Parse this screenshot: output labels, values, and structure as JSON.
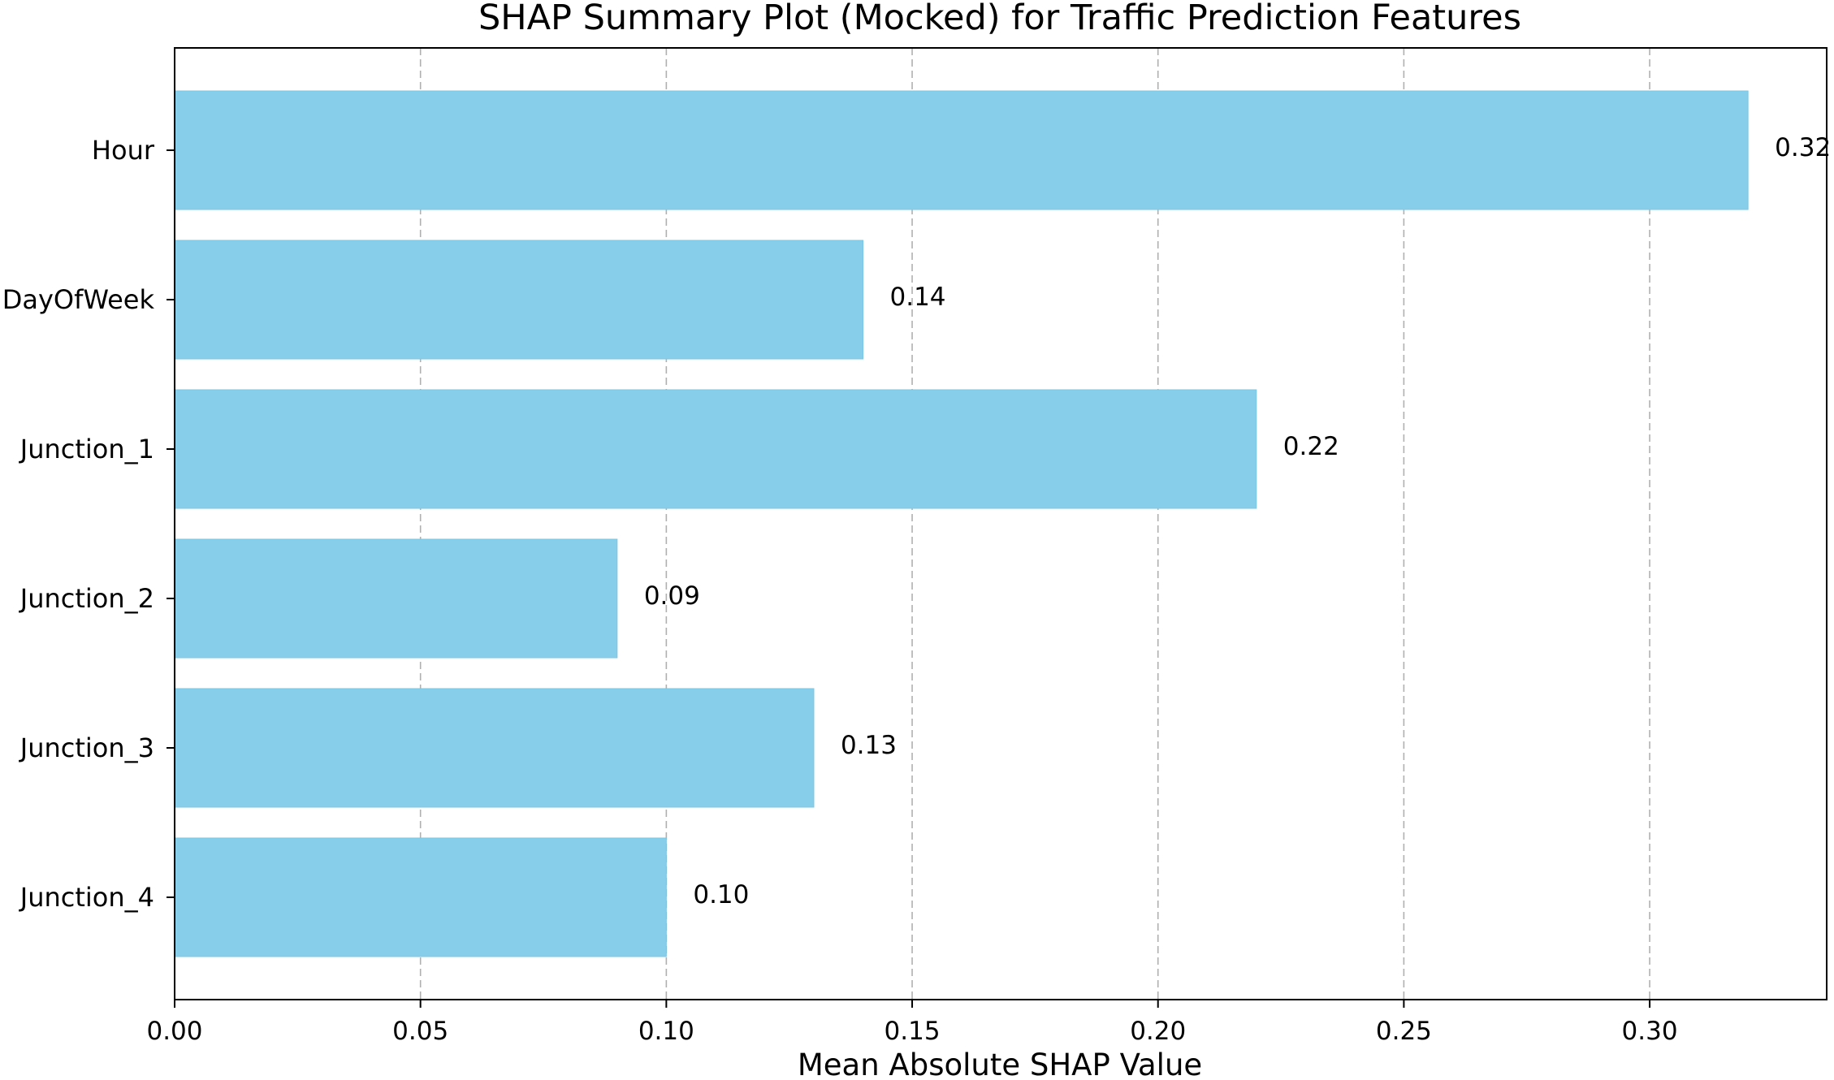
{
  "chart_data": {
    "type": "bar",
    "orientation": "horizontal",
    "title": "SHAP Summary Plot (Mocked) for Traffic Prediction Features",
    "xlabel": "Mean Absolute SHAP Value",
    "ylabel": "",
    "categories": [
      "Hour",
      "DayOfWeek",
      "Junction_1",
      "Junction_2",
      "Junction_3",
      "Junction_4"
    ],
    "values": [
      0.32,
      0.14,
      0.22,
      0.09,
      0.13,
      0.1
    ],
    "value_labels": [
      "0.32",
      "0.14",
      "0.22",
      "0.09",
      "0.13",
      "0.10"
    ],
    "xlim": [
      0,
      0.336
    ],
    "xticks": [
      0.0,
      0.05,
      0.1,
      0.15,
      0.2,
      0.25,
      0.3
    ],
    "xtick_labels": [
      "0.00",
      "0.05",
      "0.10",
      "0.15",
      "0.20",
      "0.25",
      "0.30"
    ],
    "grid": "x-dashed",
    "legend": "none",
    "bar_color": "#87ceeb",
    "grid_color": "#b0b0b0"
  }
}
